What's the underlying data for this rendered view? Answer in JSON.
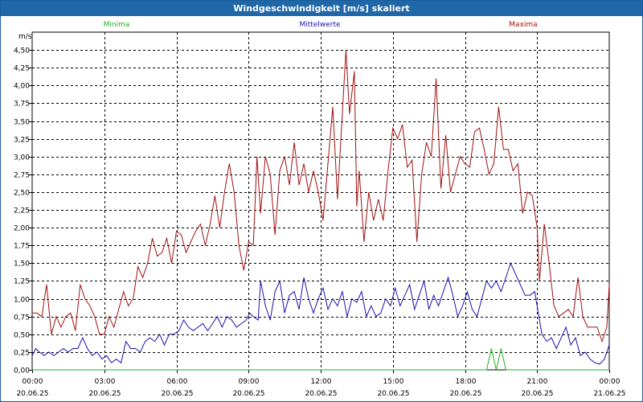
{
  "window": {
    "title": "Windgeschwindigkeit [m/s] skaliert"
  },
  "colors": {
    "minima": "#22b020",
    "mittelwerte": "#1a10b0",
    "maxima": "#a01010",
    "titlebar": "#1f67a8"
  },
  "chart_data": {
    "type": "line",
    "title": "Windgeschwindigkeit [m/s] skaliert",
    "ylabel": "m/s",
    "ylim": [
      0,
      4.75
    ],
    "yticks": [
      0,
      0.25,
      0.5,
      0.75,
      1.0,
      1.25,
      1.5,
      1.75,
      2.0,
      2.25,
      2.5,
      2.75,
      3.0,
      3.25,
      3.5,
      3.75,
      4.0,
      4.25,
      4.5
    ],
    "ytick_labels": [
      "0,00",
      "0,25",
      "0,50",
      "0,75",
      "1,00",
      "1,25",
      "1,50",
      "1,75",
      "2,00",
      "2,25",
      "2,50",
      "2,75",
      "3,00",
      "3,25",
      "3,50",
      "3,75",
      "4,00",
      "4,25",
      "4,50"
    ],
    "xlim_hours": [
      0,
      24
    ],
    "xticks": [
      {
        "h": 0,
        "time": "00:00",
        "date": "20.06.25"
      },
      {
        "h": 3,
        "time": "03:00",
        "date": "20.06.25"
      },
      {
        "h": 6,
        "time": "06:00",
        "date": "20.06.25"
      },
      {
        "h": 9,
        "time": "09:00",
        "date": "20.06.25"
      },
      {
        "h": 12,
        "time": "12:00",
        "date": "20.06.25"
      },
      {
        "h": 15,
        "time": "15:00",
        "date": "20.06.25"
      },
      {
        "h": 18,
        "time": "18:00",
        "date": "20.06.25"
      },
      {
        "h": 21,
        "time": "21:00",
        "date": "20.06.25"
      },
      {
        "h": 24,
        "time": "00:00",
        "date": "21.06.25"
      }
    ],
    "grid": true,
    "legend": "top",
    "series": [
      {
        "name": "Minima",
        "color": "#22b020",
        "points": [
          [
            0,
            0
          ],
          [
            18.9,
            0
          ],
          [
            19.1,
            0.3
          ],
          [
            19.3,
            0
          ],
          [
            19.5,
            0.3
          ],
          [
            19.7,
            0
          ],
          [
            24,
            0
          ]
        ]
      },
      {
        "name": "Mittelwerte",
        "color": "#1a10b0",
        "points": [
          [
            0,
            0.2
          ],
          [
            0.15,
            0.3
          ],
          [
            0.3,
            0.25
          ],
          [
            0.5,
            0.2
          ],
          [
            0.7,
            0.25
          ],
          [
            0.9,
            0.2
          ],
          [
            1.1,
            0.25
          ],
          [
            1.3,
            0.3
          ],
          [
            1.5,
            0.25
          ],
          [
            1.7,
            0.3
          ],
          [
            1.9,
            0.3
          ],
          [
            2.1,
            0.45
          ],
          [
            2.3,
            0.3
          ],
          [
            2.5,
            0.2
          ],
          [
            2.7,
            0.25
          ],
          [
            2.9,
            0.15
          ],
          [
            3.1,
            0.2
          ],
          [
            3.3,
            0.1
          ],
          [
            3.5,
            0.15
          ],
          [
            3.7,
            0.1
          ],
          [
            3.9,
            0.4
          ],
          [
            4.1,
            0.3
          ],
          [
            4.3,
            0.3
          ],
          [
            4.5,
            0.25
          ],
          [
            4.7,
            0.4
          ],
          [
            4.9,
            0.45
          ],
          [
            5.1,
            0.4
          ],
          [
            5.3,
            0.5
          ],
          [
            5.5,
            0.35
          ],
          [
            5.7,
            0.5
          ],
          [
            5.9,
            0.5
          ],
          [
            6.1,
            0.55
          ],
          [
            6.3,
            0.7
          ],
          [
            6.5,
            0.6
          ],
          [
            6.7,
            0.55
          ],
          [
            6.9,
            0.6
          ],
          [
            7.1,
            0.65
          ],
          [
            7.3,
            0.55
          ],
          [
            7.5,
            0.65
          ],
          [
            7.7,
            0.75
          ],
          [
            7.9,
            0.6
          ],
          [
            8.1,
            0.75
          ],
          [
            8.3,
            0.7
          ],
          [
            8.5,
            0.6
          ],
          [
            8.7,
            0.65
          ],
          [
            8.9,
            0.7
          ],
          [
            9.05,
            0.8
          ],
          [
            9.2,
            0.75
          ],
          [
            9.4,
            0.7
          ],
          [
            9.5,
            1.25
          ],
          [
            9.7,
            0.9
          ],
          [
            9.9,
            0.7
          ],
          [
            10.1,
            1.1
          ],
          [
            10.3,
            1.25
          ],
          [
            10.5,
            0.8
          ],
          [
            10.7,
            1.05
          ],
          [
            10.9,
            1.1
          ],
          [
            11.1,
            0.85
          ],
          [
            11.3,
            1.3
          ],
          [
            11.5,
            1.0
          ],
          [
            11.7,
            0.8
          ],
          [
            11.9,
            1.0
          ],
          [
            12.1,
            1.15
          ],
          [
            12.3,
            0.85
          ],
          [
            12.5,
            1.0
          ],
          [
            12.7,
            0.9
          ],
          [
            12.9,
            1.1
          ],
          [
            13.1,
            0.75
          ],
          [
            13.3,
            1.0
          ],
          [
            13.5,
            0.95
          ],
          [
            13.7,
            1.1
          ],
          [
            13.9,
            0.75
          ],
          [
            14.1,
            0.9
          ],
          [
            14.3,
            0.75
          ],
          [
            14.5,
            0.8
          ],
          [
            14.7,
            1.0
          ],
          [
            14.9,
            0.9
          ],
          [
            15.1,
            1.15
          ],
          [
            15.3,
            0.9
          ],
          [
            15.5,
            1.05
          ],
          [
            15.7,
            1.2
          ],
          [
            15.9,
            0.85
          ],
          [
            16.1,
            1.05
          ],
          [
            16.3,
            1.25
          ],
          [
            16.5,
            0.85
          ],
          [
            16.7,
            1.05
          ],
          [
            16.9,
            0.9
          ],
          [
            17.1,
            1.1
          ],
          [
            17.3,
            1.3
          ],
          [
            17.5,
            1.05
          ],
          [
            17.7,
            0.75
          ],
          [
            17.9,
            0.9
          ],
          [
            18.1,
            1.1
          ],
          [
            18.3,
            0.85
          ],
          [
            18.5,
            0.75
          ],
          [
            18.7,
            1.0
          ],
          [
            18.9,
            1.25
          ],
          [
            19.1,
            1.15
          ],
          [
            19.3,
            1.25
          ],
          [
            19.5,
            1.1
          ],
          [
            19.7,
            1.3
          ],
          [
            19.9,
            1.5
          ],
          [
            20.1,
            1.35
          ],
          [
            20.3,
            1.2
          ],
          [
            20.5,
            1.05
          ],
          [
            20.7,
            1.05
          ],
          [
            20.9,
            1.1
          ],
          [
            21.05,
            0.8
          ],
          [
            21.2,
            0.5
          ],
          [
            21.4,
            0.4
          ],
          [
            21.6,
            0.45
          ],
          [
            21.8,
            0.3
          ],
          [
            22.0,
            0.45
          ],
          [
            22.2,
            0.6
          ],
          [
            22.4,
            0.35
          ],
          [
            22.6,
            0.45
          ],
          [
            22.8,
            0.2
          ],
          [
            23.0,
            0.25
          ],
          [
            23.2,
            0.15
          ],
          [
            23.4,
            0.1
          ],
          [
            23.6,
            0.08
          ],
          [
            23.8,
            0.15
          ],
          [
            24.0,
            0.35
          ]
        ]
      },
      {
        "name": "Maxima",
        "color": "#a01010",
        "points": [
          [
            0,
            0.8
          ],
          [
            0.2,
            0.8
          ],
          [
            0.4,
            0.75
          ],
          [
            0.6,
            1.2
          ],
          [
            0.8,
            0.5
          ],
          [
            1.0,
            0.75
          ],
          [
            1.2,
            0.6
          ],
          [
            1.4,
            0.75
          ],
          [
            1.6,
            0.8
          ],
          [
            1.8,
            0.55
          ],
          [
            2.0,
            1.2
          ],
          [
            2.2,
            1.0
          ],
          [
            2.4,
            0.9
          ],
          [
            2.6,
            0.75
          ],
          [
            2.8,
            0.5
          ],
          [
            3.0,
            0.5
          ],
          [
            3.2,
            0.75
          ],
          [
            3.4,
            0.6
          ],
          [
            3.6,
            0.85
          ],
          [
            3.8,
            1.1
          ],
          [
            4.0,
            0.9
          ],
          [
            4.2,
            1.0
          ],
          [
            4.4,
            1.45
          ],
          [
            4.6,
            1.3
          ],
          [
            4.8,
            1.5
          ],
          [
            5.0,
            1.85
          ],
          [
            5.2,
            1.6
          ],
          [
            5.4,
            1.65
          ],
          [
            5.6,
            1.85
          ],
          [
            5.8,
            1.5
          ],
          [
            6.0,
            1.95
          ],
          [
            6.2,
            1.9
          ],
          [
            6.4,
            1.65
          ],
          [
            6.6,
            1.8
          ],
          [
            6.8,
            1.95
          ],
          [
            7.0,
            2.05
          ],
          [
            7.2,
            1.75
          ],
          [
            7.4,
            2.05
          ],
          [
            7.6,
            2.45
          ],
          [
            7.8,
            2.0
          ],
          [
            8.0,
            2.5
          ],
          [
            8.2,
            2.9
          ],
          [
            8.4,
            2.5
          ],
          [
            8.6,
            1.75
          ],
          [
            8.8,
            1.4
          ],
          [
            9.0,
            1.8
          ],
          [
            9.2,
            1.75
          ],
          [
            9.35,
            3.0
          ],
          [
            9.5,
            2.2
          ],
          [
            9.7,
            3.0
          ],
          [
            9.9,
            2.75
          ],
          [
            10.1,
            1.9
          ],
          [
            10.3,
            2.8
          ],
          [
            10.5,
            3.0
          ],
          [
            10.7,
            2.6
          ],
          [
            10.9,
            3.2
          ],
          [
            11.1,
            2.6
          ],
          [
            11.3,
            2.9
          ],
          [
            11.5,
            2.5
          ],
          [
            11.7,
            2.8
          ],
          [
            11.9,
            2.5
          ],
          [
            12.1,
            2.1
          ],
          [
            12.3,
            2.9
          ],
          [
            12.5,
            3.7
          ],
          [
            12.7,
            2.4
          ],
          [
            12.9,
            3.6
          ],
          [
            13.05,
            4.5
          ],
          [
            13.2,
            3.6
          ],
          [
            13.4,
            4.2
          ],
          [
            13.5,
            2.3
          ],
          [
            13.6,
            2.8
          ],
          [
            13.8,
            1.8
          ],
          [
            14.0,
            2.5
          ],
          [
            14.2,
            2.1
          ],
          [
            14.4,
            2.4
          ],
          [
            14.6,
            2.1
          ],
          [
            14.8,
            2.8
          ],
          [
            15.0,
            3.4
          ],
          [
            15.2,
            3.25
          ],
          [
            15.4,
            3.45
          ],
          [
            15.6,
            2.85
          ],
          [
            15.8,
            2.95
          ],
          [
            16.0,
            1.8
          ],
          [
            16.2,
            2.75
          ],
          [
            16.4,
            3.2
          ],
          [
            16.6,
            3.0
          ],
          [
            16.8,
            4.1
          ],
          [
            17.0,
            2.55
          ],
          [
            17.2,
            3.3
          ],
          [
            17.4,
            2.5
          ],
          [
            17.6,
            2.75
          ],
          [
            17.8,
            3.0
          ],
          [
            18.0,
            2.9
          ],
          [
            18.2,
            2.85
          ],
          [
            18.4,
            3.35
          ],
          [
            18.6,
            3.4
          ],
          [
            18.8,
            3.1
          ],
          [
            19.0,
            2.75
          ],
          [
            19.2,
            2.9
          ],
          [
            19.4,
            3.7
          ],
          [
            19.6,
            3.1
          ],
          [
            19.8,
            3.1
          ],
          [
            20.0,
            2.8
          ],
          [
            20.2,
            2.9
          ],
          [
            20.4,
            2.2
          ],
          [
            20.6,
            2.5
          ],
          [
            20.8,
            2.45
          ],
          [
            21.0,
            2.0
          ],
          [
            21.1,
            1.25
          ],
          [
            21.3,
            2.05
          ],
          [
            21.5,
            1.5
          ],
          [
            21.7,
            0.9
          ],
          [
            21.9,
            0.75
          ],
          [
            22.1,
            0.8
          ],
          [
            22.3,
            0.85
          ],
          [
            22.5,
            0.75
          ],
          [
            22.7,
            1.3
          ],
          [
            22.9,
            0.75
          ],
          [
            23.1,
            0.6
          ],
          [
            23.3,
            0.6
          ],
          [
            23.5,
            0.6
          ],
          [
            23.7,
            0.4
          ],
          [
            23.9,
            0.6
          ],
          [
            24.0,
            1.2
          ]
        ]
      }
    ]
  }
}
